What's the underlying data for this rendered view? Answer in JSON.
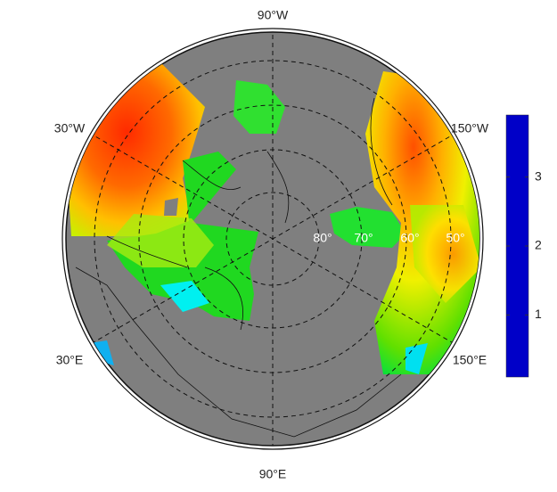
{
  "map": {
    "longitude_labels": [
      "90°W",
      "30°W",
      "150°W",
      "30°E",
      "150°E",
      "90°E"
    ],
    "latitude_labels": [
      "80°",
      "70°",
      "60°",
      "50°"
    ],
    "colorbar": {
      "range": [
        0.1,
        3.9
      ],
      "ticks": [
        1,
        2,
        3
      ],
      "colors": [
        "#0000c8",
        "#0060ff",
        "#00ffff",
        "#00e020",
        "#ffff00",
        "#ff8000",
        "#ff1a00"
      ]
    }
  }
}
